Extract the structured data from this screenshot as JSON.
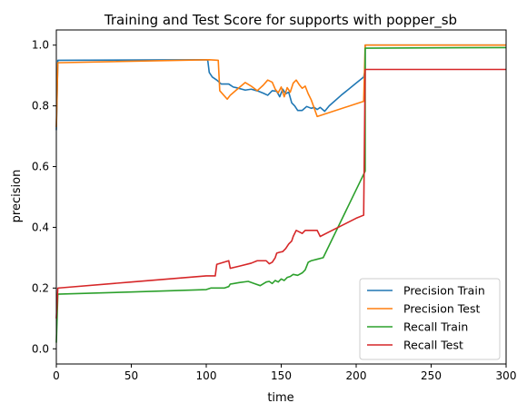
{
  "chart_data": {
    "type": "line",
    "title": "Training and Test Score for supports with popper_sb",
    "xlabel": "time",
    "ylabel": "precision",
    "xlim": [
      0,
      300
    ],
    "ylim": [
      -0.05,
      1.05
    ],
    "xticks": [
      0,
      50,
      100,
      150,
      200,
      250,
      300
    ],
    "yticks": [
      0.0,
      0.2,
      0.4,
      0.6,
      0.8,
      1.0
    ],
    "xtick_labels": [
      "0",
      "50",
      "100",
      "150",
      "200",
      "250",
      "300"
    ],
    "ytick_labels": [
      "0.0",
      "0.2",
      "0.4",
      "0.6",
      "0.8",
      "1.0"
    ],
    "grid": false,
    "legend_position": "lower-right",
    "series": [
      {
        "name": "Precision Train",
        "color": "#1f77b4",
        "points": [
          [
            0,
            0.72
          ],
          [
            1,
            0.95
          ],
          [
            100,
            0.952
          ],
          [
            101,
            0.95
          ],
          [
            102,
            0.91
          ],
          [
            104,
            0.895
          ],
          [
            107,
            0.885
          ],
          [
            110,
            0.872
          ],
          [
            115,
            0.872
          ],
          [
            118,
            0.862
          ],
          [
            120,
            0.86
          ],
          [
            126,
            0.852
          ],
          [
            130,
            0.855
          ],
          [
            135,
            0.848
          ],
          [
            138,
            0.842
          ],
          [
            141,
            0.835
          ],
          [
            144,
            0.85
          ],
          [
            147,
            0.848
          ],
          [
            149,
            0.83
          ],
          [
            151,
            0.855
          ],
          [
            153,
            0.84
          ],
          [
            155,
            0.845
          ],
          [
            157,
            0.81
          ],
          [
            159,
            0.8
          ],
          [
            161,
            0.785
          ],
          [
            164,
            0.785
          ],
          [
            167,
            0.798
          ],
          [
            170,
            0.792
          ],
          [
            172,
            0.795
          ],
          [
            174,
            0.788
          ],
          [
            176,
            0.795
          ],
          [
            179,
            0.782
          ],
          [
            182,
            0.8
          ],
          [
            190,
            0.835
          ],
          [
            200,
            0.875
          ],
          [
            205,
            0.895
          ],
          [
            206,
            0.92
          ],
          [
            206,
            1.0
          ],
          [
            300,
            1.0
          ]
        ]
      },
      {
        "name": "Precision Test",
        "color": "#ff7f0e",
        "points": [
          [
            0,
            0.73
          ],
          [
            1,
            0.942
          ],
          [
            102,
            0.952
          ],
          [
            108,
            0.95
          ],
          [
            109,
            0.85
          ],
          [
            114,
            0.822
          ],
          [
            116,
            0.835
          ],
          [
            120,
            0.852
          ],
          [
            126,
            0.877
          ],
          [
            130,
            0.865
          ],
          [
            134,
            0.85
          ],
          [
            138,
            0.868
          ],
          [
            141,
            0.885
          ],
          [
            144,
            0.878
          ],
          [
            146,
            0.855
          ],
          [
            148,
            0.843
          ],
          [
            150,
            0.862
          ],
          [
            152,
            0.83
          ],
          [
            154,
            0.86
          ],
          [
            156,
            0.845
          ],
          [
            158,
            0.875
          ],
          [
            160,
            0.885
          ],
          [
            162,
            0.87
          ],
          [
            164,
            0.858
          ],
          [
            166,
            0.865
          ],
          [
            168,
            0.84
          ],
          [
            170,
            0.82
          ],
          [
            174,
            0.765
          ],
          [
            205,
            0.815
          ],
          [
            206,
            1.0
          ],
          [
            300,
            1.0
          ]
        ]
      },
      {
        "name": "Recall Train",
        "color": "#2ca02c",
        "points": [
          [
            0,
            0.02
          ],
          [
            1,
            0.18
          ],
          [
            50,
            0.187
          ],
          [
            100,
            0.195
          ],
          [
            103,
            0.2
          ],
          [
            112,
            0.2
          ],
          [
            115,
            0.205
          ],
          [
            116,
            0.213
          ],
          [
            122,
            0.218
          ],
          [
            128,
            0.222
          ],
          [
            132,
            0.215
          ],
          [
            136,
            0.208
          ],
          [
            140,
            0.22
          ],
          [
            142,
            0.222
          ],
          [
            144,
            0.215
          ],
          [
            146,
            0.225
          ],
          [
            148,
            0.22
          ],
          [
            150,
            0.23
          ],
          [
            152,
            0.225
          ],
          [
            154,
            0.235
          ],
          [
            156,
            0.238
          ],
          [
            158,
            0.245
          ],
          [
            161,
            0.242
          ],
          [
            164,
            0.25
          ],
          [
            166,
            0.26
          ],
          [
            168,
            0.285
          ],
          [
            170,
            0.29
          ],
          [
            174,
            0.295
          ],
          [
            178,
            0.3
          ],
          [
            206,
            0.585
          ],
          [
            206,
            0.99
          ],
          [
            300,
            0.992
          ]
        ]
      },
      {
        "name": "Recall Test",
        "color": "#d62728",
        "points": [
          [
            0,
            0.1
          ],
          [
            1,
            0.2
          ],
          [
            50,
            0.22
          ],
          [
            100,
            0.24
          ],
          [
            106,
            0.24
          ],
          [
            107,
            0.278
          ],
          [
            115,
            0.29
          ],
          [
            116,
            0.265
          ],
          [
            122,
            0.272
          ],
          [
            130,
            0.282
          ],
          [
            134,
            0.29
          ],
          [
            140,
            0.29
          ],
          [
            142,
            0.28
          ],
          [
            144,
            0.285
          ],
          [
            146,
            0.3
          ],
          [
            147,
            0.315
          ],
          [
            149,
            0.318
          ],
          [
            151,
            0.32
          ],
          [
            153,
            0.33
          ],
          [
            155,
            0.345
          ],
          [
            157,
            0.355
          ],
          [
            158,
            0.37
          ],
          [
            160,
            0.39
          ],
          [
            162,
            0.385
          ],
          [
            164,
            0.38
          ],
          [
            166,
            0.39
          ],
          [
            170,
            0.39
          ],
          [
            174,
            0.39
          ],
          [
            176,
            0.37
          ],
          [
            182,
            0.385
          ],
          [
            200,
            0.43
          ],
          [
            205,
            0.44
          ],
          [
            206,
            0.92
          ],
          [
            300,
            0.92
          ]
        ]
      }
    ]
  }
}
